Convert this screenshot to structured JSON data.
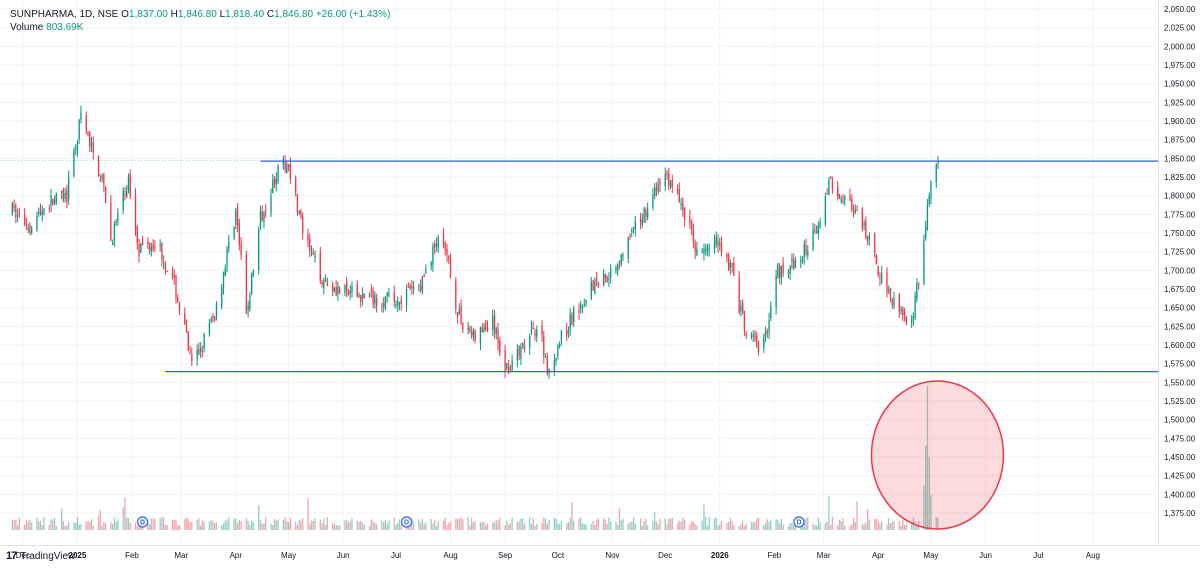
{
  "header": {
    "symbol_line": "SUNPHARMA, 1D, NSE",
    "open_label": "O",
    "open": "1,837.00",
    "high_label": "H",
    "high": "1,846.80",
    "low_label": "L",
    "low": "1,818.40",
    "close_label": "C",
    "close": "1,846.80",
    "change": "+26.00 (+1.43%)",
    "volume_label": "Volume",
    "volume": "803.69K"
  },
  "brand": {
    "logo": "17",
    "name": "TradingView"
  },
  "chart_data": {
    "type": "candlestick",
    "title": "SUNPHARMA, 1D, NSE",
    "ylim": [
      1350,
      2050
    ],
    "y_ticks": [
      "2,050.00",
      "2,025.00",
      "2,000.00",
      "1,975.00",
      "1,950.00",
      "1,925.00",
      "1,900.00",
      "1,875.00",
      "1,850.00",
      "1,825.00",
      "1,800.00",
      "1,775.00",
      "1,750.00",
      "1,725.00",
      "1,700.00",
      "1,675.00",
      "1,650.00",
      "1,625.00",
      "1,600.00",
      "1,575.00",
      "1,550.00",
      "1,525.00",
      "1,500.00",
      "1,475.00",
      "1,450.00",
      "1,425.00",
      "1,400.00",
      "1,375.00"
    ],
    "x_ticks": [
      "Dec",
      "2025",
      "Feb",
      "Mar",
      "Apr",
      "May",
      "Jun",
      "Jul",
      "Aug",
      "Sep",
      "Oct",
      "Nov",
      "Dec",
      "2026",
      "Feb",
      "Mar",
      "Apr",
      "May",
      "Jun",
      "Jul",
      "Aug"
    ],
    "price_path": [
      {
        "date": "2024-11-25",
        "close": 1780
      },
      {
        "date": "2024-12-05",
        "close": 1760
      },
      {
        "date": "2024-12-15",
        "close": 1790
      },
      {
        "date": "2024-12-26",
        "close": 1800
      },
      {
        "date": "2025-01-03",
        "close": 1905
      },
      {
        "date": "2025-01-15",
        "close": 1820
      },
      {
        "date": "2025-01-20",
        "close": 1740
      },
      {
        "date": "2025-01-30",
        "close": 1820
      },
      {
        "date": "2025-02-05",
        "close": 1730
      },
      {
        "date": "2025-02-15",
        "close": 1740
      },
      {
        "date": "2025-02-25",
        "close": 1680
      },
      {
        "date": "2025-03-03",
        "close": 1620
      },
      {
        "date": "2025-03-07",
        "close": 1570
      },
      {
        "date": "2025-03-20",
        "close": 1640
      },
      {
        "date": "2025-04-01",
        "close": 1780
      },
      {
        "date": "2025-04-07",
        "close": 1640
      },
      {
        "date": "2025-04-15",
        "close": 1770
      },
      {
        "date": "2025-04-24",
        "close": 1830
      },
      {
        "date": "2025-05-01",
        "close": 1845
      },
      {
        "date": "2025-05-10",
        "close": 1740
      },
      {
        "date": "2025-05-20",
        "close": 1690
      },
      {
        "date": "2025-06-01",
        "close": 1670
      },
      {
        "date": "2025-06-15",
        "close": 1665
      },
      {
        "date": "2025-07-01",
        "close": 1660
      },
      {
        "date": "2025-07-15",
        "close": 1680
      },
      {
        "date": "2025-07-25",
        "close": 1745
      },
      {
        "date": "2025-08-01",
        "close": 1700
      },
      {
        "date": "2025-08-05",
        "close": 1640
      },
      {
        "date": "2025-08-15",
        "close": 1610
      },
      {
        "date": "2025-08-25",
        "close": 1630
      },
      {
        "date": "2025-09-01",
        "close": 1570
      },
      {
        "date": "2025-09-10",
        "close": 1590
      },
      {
        "date": "2025-09-20",
        "close": 1630
      },
      {
        "date": "2025-09-26",
        "close": 1560
      },
      {
        "date": "2025-10-01",
        "close": 1600
      },
      {
        "date": "2025-10-10",
        "close": 1640
      },
      {
        "date": "2025-10-20",
        "close": 1680
      },
      {
        "date": "2025-11-01",
        "close": 1700
      },
      {
        "date": "2025-11-15",
        "close": 1760
      },
      {
        "date": "2025-12-01",
        "close": 1830
      },
      {
        "date": "2025-12-10",
        "close": 1790
      },
      {
        "date": "2025-12-20",
        "close": 1720
      },
      {
        "date": "2025-12-31",
        "close": 1740
      },
      {
        "date": "2026-01-08",
        "close": 1700
      },
      {
        "date": "2026-01-15",
        "close": 1620
      },
      {
        "date": "2026-01-25",
        "close": 1590
      },
      {
        "date": "2026-02-03",
        "close": 1700
      },
      {
        "date": "2026-02-15",
        "close": 1710
      },
      {
        "date": "2026-02-25",
        "close": 1760
      },
      {
        "date": "2026-03-05",
        "close": 1820
      },
      {
        "date": "2026-03-15",
        "close": 1790
      },
      {
        "date": "2026-03-25",
        "close": 1750
      },
      {
        "date": "2026-04-01",
        "close": 1700
      },
      {
        "date": "2026-04-10",
        "close": 1660
      },
      {
        "date": "2026-04-20",
        "close": 1630
      },
      {
        "date": "2026-04-25",
        "close": 1700
      },
      {
        "date": "2026-05-01",
        "close": 1820
      },
      {
        "date": "2026-05-05",
        "close": 1846.8
      }
    ],
    "resistance": {
      "value": 1846.27,
      "label": "1,846.27",
      "start_date": "2025-04-15"
    },
    "support": {
      "value": 1564.36,
      "label": "1,564.36",
      "start_date": "2025-02-20"
    },
    "last_price": {
      "value": 1846.8,
      "label": "1,846.80"
    },
    "dividend_markers": [
      {
        "date": "2025-02-07",
        "label": "D"
      },
      {
        "date": "2025-07-07",
        "label": "D"
      },
      {
        "date": "2026-02-15",
        "label": "D"
      }
    ],
    "highlight": {
      "date": "2026-04-29",
      "note": "volume spike"
    },
    "colors": {
      "up": "#089981",
      "down": "#f23645",
      "line": "#2962ff",
      "highlight": "#f23645"
    },
    "grid": true,
    "legend": "top-left"
  }
}
